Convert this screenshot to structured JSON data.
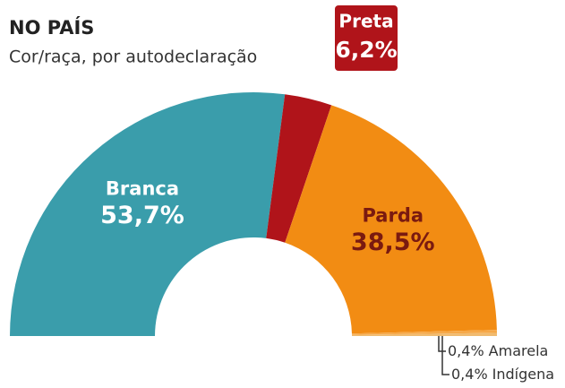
{
  "chart_data": {
    "type": "pie",
    "title": "NO PAÍS",
    "subtitle": "Cor/raça, por autodeclaração",
    "categories": [
      "Branca",
      "Preta",
      "Parda",
      "Amarela",
      "Indígena"
    ],
    "values": [
      53.7,
      6.2,
      38.5,
      0.4,
      0.4
    ],
    "value_labels": [
      "53,7%",
      "6,2%",
      "38,5%",
      "0,4%",
      "0,4%"
    ],
    "colors": [
      "#3a9dab",
      "#b0141a",
      "#f28c13",
      "#f6a848",
      "#f0bb70"
    ]
  }
}
